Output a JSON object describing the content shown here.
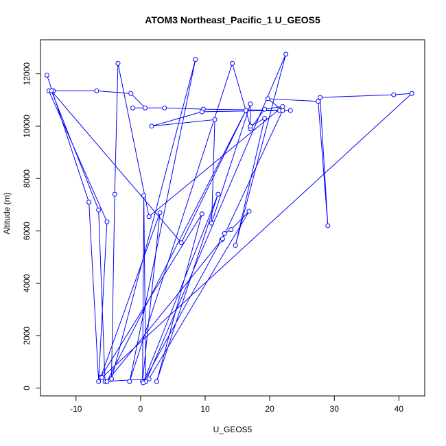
{
  "chart_data": {
    "type": "line",
    "title": "ATOM3 Northeast_Pacific_1 U_GEOS5",
    "xlabel": "U_GEOS5",
    "ylabel": "Altitude (m)",
    "xlim": [
      -15.5,
      44
    ],
    "ylim": [
      -300,
      13300
    ],
    "x_ticks": [
      -10,
      0,
      10,
      20,
      30,
      40
    ],
    "y_ticks": [
      0,
      2000,
      4000,
      6000,
      8000,
      10000,
      12000
    ],
    "x_tick_labels": [
      "-10",
      "0",
      "10",
      "20",
      "30",
      "40"
    ],
    "y_tick_labels": [
      "0",
      "2000",
      "4000",
      "6000",
      "8000",
      "10000",
      "12000"
    ],
    "grid": false,
    "color": "#0000ff",
    "marker": "open-circle",
    "series": [
      {
        "points": [
          [
            -14.5,
            11950
          ],
          [
            -8,
            7100
          ],
          [
            -6.5,
            250
          ],
          [
            -5.2,
            6350
          ],
          [
            -14.2,
            11350
          ],
          [
            -13.5,
            11350
          ],
          [
            -6.8,
            11350
          ],
          [
            -1.5,
            11250
          ],
          [
            0.7,
            10700
          ],
          [
            -1.2,
            10700
          ],
          [
            3.7,
            10700
          ],
          [
            9.7,
            10650
          ],
          [
            23.2,
            10600
          ],
          [
            21.5,
            10600
          ],
          [
            9.5,
            10550
          ],
          [
            1.7,
            10000
          ],
          [
            11.5,
            10250
          ],
          [
            11.0,
            6300
          ],
          [
            17.0,
            10850
          ],
          [
            17.0,
            9900
          ],
          [
            19.2,
            10650
          ],
          [
            22.0,
            10750
          ],
          [
            1.3,
            6550
          ],
          [
            -3.5,
            12400
          ],
          [
            -4.0,
            7400
          ],
          [
            -4.5,
            350
          ],
          [
            8.5,
            12550
          ],
          [
            -1.7,
            250
          ],
          [
            14.2,
            12400
          ],
          [
            17.0,
            10000
          ],
          [
            19.2,
            10300
          ],
          [
            14.7,
            5450
          ],
          [
            22.5,
            12750
          ],
          [
            0.8,
            250
          ],
          [
            0.5,
            7350
          ],
          [
            0.3,
            250
          ],
          [
            3.0,
            6700
          ],
          [
            -6.2,
            400
          ],
          [
            9.5,
            6650
          ],
          [
            2.5,
            250
          ],
          [
            12.0,
            7400
          ],
          [
            0.4,
            200
          ],
          [
            12.5,
            5650
          ],
          [
            13.0,
            5900
          ],
          [
            14.0,
            6050
          ],
          [
            16.8,
            6750
          ],
          [
            1.3,
            350
          ],
          [
            -5.5,
            250
          ],
          [
            -6.5,
            6800
          ],
          [
            -13.8,
            11350
          ],
          [
            6.3,
            5550
          ],
          [
            16.3,
            10600
          ],
          [
            -5.2,
            250
          ],
          [
            12.7,
            5700
          ],
          [
            22.0,
            10600
          ],
          [
            19.7,
            11050
          ],
          [
            27.5,
            10950
          ],
          [
            29.0,
            6200
          ],
          [
            27.8,
            11100
          ],
          [
            39.2,
            11200
          ],
          [
            42.0,
            11250
          ],
          [
            -6.0,
            400
          ]
        ]
      }
    ]
  }
}
